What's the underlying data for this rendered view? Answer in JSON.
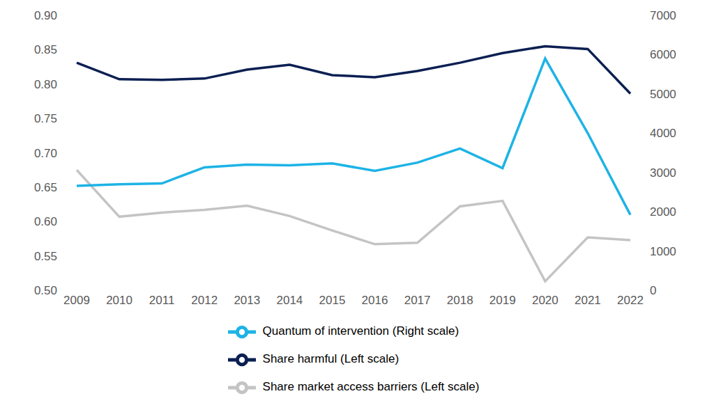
{
  "chart_data": {
    "type": "line",
    "categories": [
      "2009",
      "2010",
      "2011",
      "2012",
      "2013",
      "2014",
      "2015",
      "2016",
      "2017",
      "2018",
      "2019",
      "2020",
      "2021",
      "2022"
    ],
    "series": [
      {
        "name": "Share harmful (Left scale)",
        "color": "#0b1f52",
        "axis": "y",
        "values": [
          0.831,
          0.807,
          0.806,
          0.808,
          0.821,
          0.828,
          0.813,
          0.81,
          0.819,
          0.831,
          0.845,
          0.855,
          0.851,
          0.786
        ]
      },
      {
        "name": "Share market access barriers (Left scale)",
        "color": "#c4c4c4",
        "axis": "y",
        "values": [
          0.675,
          0.607,
          0.613,
          0.617,
          0.623,
          0.608,
          0.587,
          0.567,
          0.569,
          0.622,
          0.63,
          0.513,
          0.577,
          0.573
        ]
      },
      {
        "name": "Quantum of intervention (Right scale)",
        "color": "#1db3e6",
        "axis": "y2",
        "values": [
          2660,
          2700,
          2720,
          3130,
          3200,
          3180,
          3230,
          3040,
          3250,
          3610,
          3110,
          5900,
          4000,
          1920
        ]
      }
    ],
    "ylim": [
      0.5,
      0.9
    ],
    "yticks": [
      {
        "value": 0.5,
        "label": "0.50"
      },
      0.55,
      {
        "value": 0.6,
        "label": "0.60"
      },
      0.65,
      {
        "value": 0.7,
        "label": "0.70"
      },
      0.75,
      {
        "value": 0.8,
        "label": "0.80"
      },
      0.85,
      {
        "value": 0.9,
        "label": "0.90"
      }
    ],
    "y2lim": [
      0,
      7000
    ],
    "y2ticks": [
      0,
      1000,
      2000,
      3000,
      4000,
      5000,
      6000,
      7000
    ],
    "grid": false,
    "legend": "bottom"
  }
}
